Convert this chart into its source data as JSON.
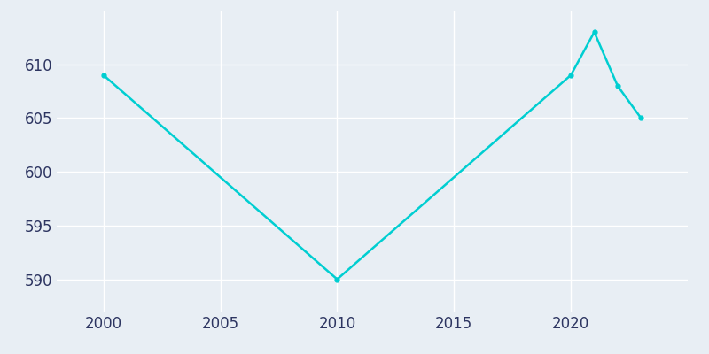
{
  "years": [
    2000,
    2010,
    2020,
    2021,
    2022,
    2023
  ],
  "population": [
    609,
    590,
    609,
    613,
    608,
    605
  ],
  "line_color": "#00CED1",
  "marker": "o",
  "marker_size": 3.5,
  "bg_color": "#e8eef4",
  "grid_color": "#ffffff",
  "ylim": [
    587,
    615
  ],
  "xlim": [
    1998,
    2025
  ],
  "yticks": [
    590,
    595,
    600,
    605,
    610
  ],
  "xticks": [
    2000,
    2005,
    2010,
    2015,
    2020
  ],
  "tick_color": "#2d3561",
  "line_width": 1.8,
  "tick_labelsize": 12
}
